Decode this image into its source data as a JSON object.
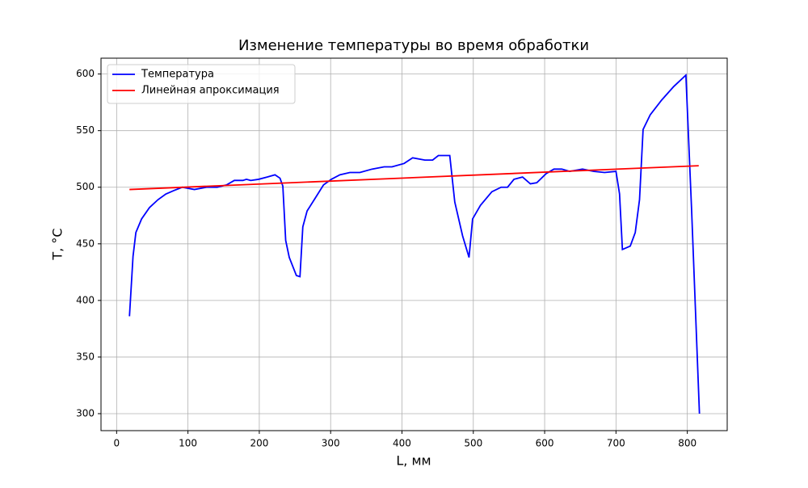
{
  "chart_data": {
    "type": "line",
    "title": "Изменение температуры во время обработки",
    "xlabel": "L, мм",
    "ylabel": "T, °C",
    "xlim": [
      -21.9,
      855.9
    ],
    "ylim": [
      285,
      614
    ],
    "xticks": [
      0,
      100,
      200,
      300,
      400,
      500,
      600,
      700,
      800
    ],
    "yticks": [
      300,
      350,
      400,
      450,
      500,
      550,
      600
    ],
    "grid": true,
    "legend": "upper left",
    "series": [
      {
        "name": "Температура",
        "color": "#0000ff",
        "x": [
          18,
          23,
          27,
          35,
          46,
          58,
          69,
          80,
          92,
          109,
          126,
          141,
          154,
          165,
          177,
          182,
          188,
          199,
          211,
          222,
          229,
          233,
          237,
          242,
          252,
          257,
          261,
          267,
          279,
          290,
          301,
          313,
          327,
          341,
          358,
          375,
          386,
          403,
          415,
          432,
          443,
          451,
          460,
          467,
          474,
          485,
          494,
          499,
          510,
          526,
          539,
          548,
          557,
          569,
          580,
          589,
          602,
          613,
          624,
          635,
          653,
          669,
          684,
          700,
          705,
          709,
          720,
          727,
          733,
          738,
          748,
          764,
          781,
          798,
          806,
          817
        ],
        "values": [
          386,
          439,
          460,
          472,
          482,
          489,
          494,
          497,
          500,
          498,
          500,
          500,
          502,
          506,
          506,
          507,
          506,
          507,
          509,
          511,
          508,
          501,
          453,
          438,
          422,
          421,
          465,
          479,
          491,
          502,
          507,
          511,
          513,
          513,
          516,
          518,
          518,
          521,
          526,
          524,
          524,
          528,
          528,
          528,
          487,
          457,
          438,
          472,
          484,
          496,
          500,
          500,
          507,
          509,
          503,
          504,
          512,
          516,
          516,
          514,
          516,
          514,
          513,
          514,
          494,
          445,
          448,
          460,
          489,
          551,
          564,
          577,
          589,
          599,
          480,
          300
        ]
      },
      {
        "name": "Линейная апроксимация",
        "color": "#ff0000",
        "x": [
          18,
          816
        ],
        "values": [
          498,
          519
        ]
      }
    ]
  }
}
